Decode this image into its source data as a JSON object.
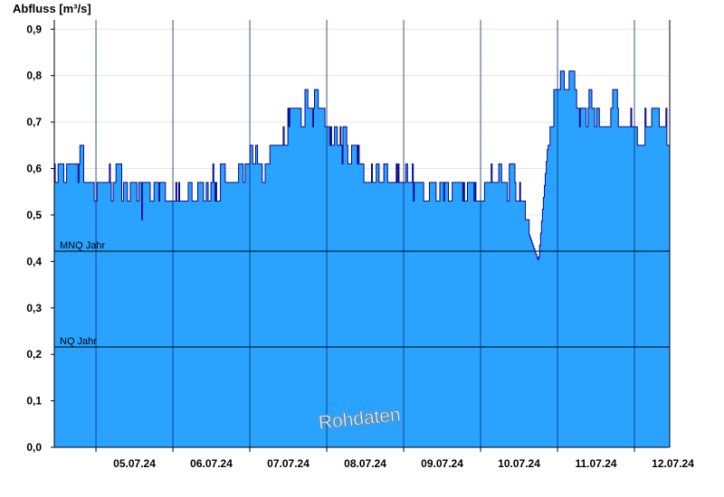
{
  "chart_data": {
    "type": "area",
    "ylabel": "Abfluss [m³/s]",
    "ylim": [
      0,
      0.92
    ],
    "yticks": [
      "0,0",
      "0,1",
      "0,2",
      "0,3",
      "0,4",
      "0,5",
      "0,6",
      "0,7",
      "0,8",
      "0,9"
    ],
    "xlim": [
      "04.07.24 11:00",
      "12.07.24 11:00"
    ],
    "xticks": [
      "05.07.24",
      "06.07.24",
      "07.07.24",
      "08.07.24",
      "09.07.24",
      "10.07.24",
      "11.07.24",
      "12.07.24"
    ],
    "reference_lines": [
      {
        "label": "MNQ Jahr",
        "value": 0.422
      },
      {
        "label": "NQ Jahr",
        "value": 0.216
      }
    ],
    "watermark": "Rohdaten",
    "colors": {
      "fill": "#29a3ff",
      "line": "#0a0a8c",
      "grid": "#e6e6e6",
      "daylines": "#0a2a66"
    },
    "x": [
      "04.07.24 11:00",
      "04.07.24 19:00",
      "05.07.24 00:00",
      "05.07.24 06:00",
      "05.07.24 12:00",
      "05.07.24 18:00",
      "06.07.24 00:00",
      "06.07.24 06:00",
      "06.07.24 12:00",
      "06.07.24 18:00",
      "07.07.24 00:00",
      "07.07.24 06:00",
      "07.07.24 12:00",
      "07.07.24 18:00",
      "08.07.24 00:00",
      "08.07.24 06:00",
      "08.07.24 12:00",
      "08.07.24 18:00",
      "09.07.24 00:00",
      "09.07.24 06:00",
      "09.07.24 12:00",
      "09.07.24 18:00",
      "10.07.24 00:00",
      "10.07.24 06:00",
      "10.07.24 12:00",
      "10.07.24 18:00",
      "10.07.24 21:00",
      "11.07.24 00:00",
      "11.07.24 06:00",
      "11.07.24 12:00",
      "11.07.24 18:00",
      "12.07.24 00:00",
      "12.07.24 06:00",
      "12.07.24 11:00"
    ],
    "y": [
      0.55,
      0.59,
      0.53,
      0.55,
      0.51,
      0.53,
      0.52,
      0.55,
      0.53,
      0.56,
      0.58,
      0.61,
      0.67,
      0.72,
      0.68,
      0.62,
      0.56,
      0.58,
      0.55,
      0.53,
      0.53,
      0.54,
      0.52,
      0.56,
      0.52,
      0.4,
      0.66,
      0.76,
      0.72,
      0.69,
      0.7,
      0.66,
      0.7,
      0.65
    ],
    "peaks": [
      0.64,
      0.6,
      0.59,
      0.56,
      0.6,
      0.55,
      0.6,
      0.65,
      0.73,
      0.73,
      0.64,
      0.62,
      0.58,
      0.61,
      0.54,
      0.64,
      0.82,
      0.77,
      0.76,
      0.77
    ]
  }
}
